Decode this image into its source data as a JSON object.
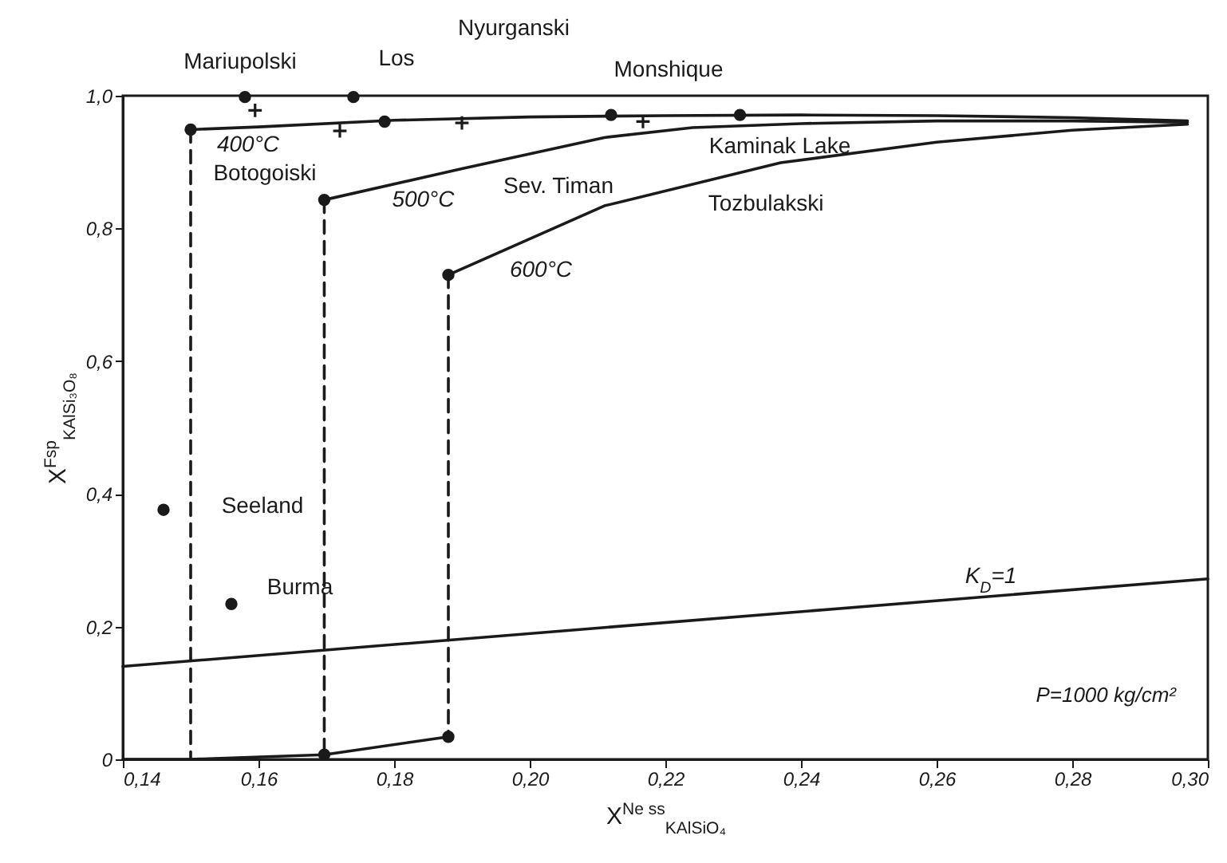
{
  "chart_data": {
    "type": "line",
    "xlabel": "X$^{Ne ss}$$_{KAlSiO₄}$",
    "ylabel": "X$^{Fsp}$$_{KAlSi₃O₈}$",
    "xlim": [
      0.14,
      0.3
    ],
    "xticks": [
      {
        "value": 0.14,
        "label": "0,14"
      },
      {
        "value": 0.16,
        "label": "0,16"
      },
      {
        "value": 0.18,
        "label": "0,18"
      },
      {
        "value": 0.2,
        "label": "0,20"
      },
      {
        "value": 0.22,
        "label": "0,22"
      },
      {
        "value": 0.24,
        "label": "0,24"
      },
      {
        "value": 0.26,
        "label": "0,26"
      },
      {
        "value": 0.28,
        "label": "0,28"
      },
      {
        "value": 0.3,
        "label": "0,30"
      }
    ],
    "ylim": [
      0,
      1.0
    ],
    "yticks": [
      0,
      {
        "value": 0.2,
        "label": "0,2"
      },
      {
        "value": 0.4,
        "label": "0,4"
      },
      {
        "value": 0.6,
        "label": "0,6"
      },
      {
        "value": 0.8,
        "label": "0,8"
      },
      {
        "value": 1.0,
        "label": "1,0"
      }
    ],
    "grid": false,
    "series": [
      {
        "color": "#1a1a1a",
        "line_style": "solid",
        "x": [
          0.15,
          0.16,
          0.18,
          0.2,
          0.22,
          0.24,
          0.26,
          0.28,
          0.297
        ],
        "values": [
          0.949,
          0.953,
          0.963,
          0.968,
          0.97,
          0.971,
          0.97,
          0.967,
          0.962
        ]
      },
      {
        "color": "#1a1a1a",
        "line_style": "solid",
        "x": [
          0.1697,
          0.19,
          0.211,
          0.224,
          0.24,
          0.26,
          0.28,
          0.297
        ],
        "values": [
          0.843,
          0.89,
          0.937,
          0.952,
          0.958,
          0.962,
          0.962,
          0.96
        ]
      },
      {
        "color": "#1a1a1a",
        "line_style": "solid",
        "x": [
          0.188,
          0.211,
          0.237,
          0.26,
          0.28,
          0.297
        ],
        "values": [
          0.73,
          0.834,
          0.899,
          0.93,
          0.948,
          0.957
        ]
      },
      {
        "color": "#1a1a1a",
        "line_style": "solid",
        "x": [
          0.14,
          0.15,
          0.1697,
          0.188
        ],
        "values": [
          0,
          0,
          0.007,
          0.034
        ]
      },
      {
        "color": "#1a1a1a",
        "line_style": "dashed",
        "x": [
          0.15,
          0.15
        ],
        "values": [
          0.949,
          0
        ]
      },
      {
        "color": "#1a1a1a",
        "line_style": "dashed",
        "x": [
          0.1697,
          0.1697
        ],
        "values": [
          0.843,
          0.007
        ]
      },
      {
        "color": "#1a1a1a",
        "line_style": "dashed",
        "x": [
          0.188,
          0.188
        ],
        "values": [
          0.73,
          0.034
        ]
      },
      {
        "color": "#1a1a1a",
        "line_style": "solid",
        "x": [
          0.14,
          0.3
        ],
        "values": [
          0.14,
          0.272
        ]
      },
      {
        "type": "scatter",
        "color": "#1a1a1a",
        "marker": "circle",
        "x": [
          0.15,
          0.1697,
          0.188,
          0.1697,
          0.188,
          0.158,
          0.174
        ],
        "values": [
          0.949,
          0.843,
          0.73,
          0.007,
          0.034,
          0.998,
          0.998
        ]
      },
      {
        "type": "scatter",
        "color": "#1a1a1a",
        "marker": "circle",
        "x": [
          0.146,
          0.156,
          0.1786,
          0.212,
          0.231
        ],
        "values": [
          0.376,
          0.234,
          0.961,
          0.971,
          0.971
        ]
      },
      {
        "type": "scatter",
        "color": "#1a1a1a",
        "marker": "cross",
        "x": [
          0.1595,
          0.172,
          0.19,
          0.2167
        ],
        "values": [
          0.978,
          0.947,
          0.959,
          0.961
        ]
      }
    ],
    "annotations": [
      {
        "text": "Mariupolski",
        "x": 0.158,
        "y": 0.998
      },
      {
        "text": "Los",
        "x": 0.174,
        "y": 0.998
      },
      "Nyurganski",
      {
        "text": "Monshique",
        "x": 0.212,
        "y": 0.971
      },
      {
        "text": "Botogoiski",
        "x": 0.172,
        "y": 0.947
      },
      "Sev. Timan",
      {
        "text": "Kaminak Lake",
        "x": 0.231,
        "y": 0.971
      },
      "Tozbulakski",
      {
        "text": "Seeland",
        "x": 0.146,
        "y": 0.376
      },
      {
        "text": "Burma",
        "x": 0.156,
        "y": 0.234
      },
      {
        "text": "400°C",
        "x": 0.15,
        "y": 0.949
      },
      {
        "text": "500°C",
        "x": 0.1697,
        "y": 0.843
      },
      {
        "text": "600°C",
        "x": 0.188,
        "y": 0.73
      },
      {
        "text": "K$_{D}$=1",
        "x": 0.268,
        "y": 0.246
      },
      "P=1000 kg/cm²"
    ]
  }
}
